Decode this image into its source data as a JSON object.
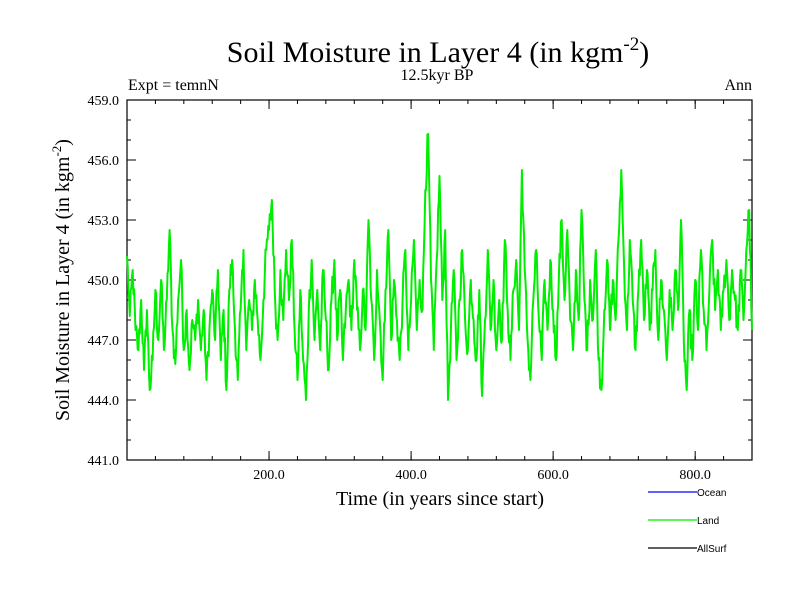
{
  "chart_data": {
    "type": "line",
    "title": "Soil Moisture in Layer 4 (in kgm",
    "title_sup": "-2",
    "title_close": ")",
    "subtitle_left": "Expt = temnN",
    "subtitle_center": "12.5kyr BP",
    "subtitle_right": "Ann",
    "xlabel": "Time (in years since start)",
    "ylabel": "Soil Moisture in Layer 4 (in kgm",
    "ylabel_sup": "-2",
    "ylabel_close": ")",
    "xlim": [
      0,
      880
    ],
    "ylim": [
      441.0,
      459.0
    ],
    "x_ticks": [
      200,
      400,
      600,
      800
    ],
    "x_tick_labels": [
      "200.0",
      "400.0",
      "600.0",
      "800.0"
    ],
    "y_ticks": [
      441,
      444,
      447,
      450,
      453,
      456,
      459
    ],
    "y_tick_labels": [
      "441.0",
      "444.0",
      "447.0",
      "450.0",
      "453.0",
      "456.0",
      "459.0"
    ],
    "x_minor_step": 40,
    "y_minor_step": 1,
    "anchors": [
      [
        0,
        451.2
      ],
      [
        4,
        448.2
      ],
      [
        8,
        450.5
      ],
      [
        12,
        447.5
      ],
      [
        16,
        446.5
      ],
      [
        20,
        449.0
      ],
      [
        24,
        445.5
      ],
      [
        28,
        448.5
      ],
      [
        32,
        444.5
      ],
      [
        36,
        446.0
      ],
      [
        40,
        449.5
      ],
      [
        44,
        447.0
      ],
      [
        48,
        450.0
      ],
      [
        52,
        446.5
      ],
      [
        56,
        449.0
      ],
      [
        60,
        452.5
      ],
      [
        64,
        447.5
      ],
      [
        68,
        445.8
      ],
      [
        72,
        449.0
      ],
      [
        76,
        451.0
      ],
      [
        80,
        446.5
      ],
      [
        84,
        448.5
      ],
      [
        88,
        445.5
      ],
      [
        92,
        448.0
      ],
      [
        96,
        447.0
      ],
      [
        100,
        449.0
      ],
      [
        104,
        446.5
      ],
      [
        108,
        448.5
      ],
      [
        112,
        445.0
      ],
      [
        116,
        447.5
      ],
      [
        120,
        449.5
      ],
      [
        124,
        447.0
      ],
      [
        128,
        450.5
      ],
      [
        132,
        446.0
      ],
      [
        136,
        448.5
      ],
      [
        140,
        444.5
      ],
      [
        144,
        449.5
      ],
      [
        148,
        451.0
      ],
      [
        152,
        447.5
      ],
      [
        156,
        445.0
      ],
      [
        160,
        448.5
      ],
      [
        164,
        451.5
      ],
      [
        168,
        446.5
      ],
      [
        172,
        449.0
      ],
      [
        176,
        447.5
      ],
      [
        180,
        450.0
      ],
      [
        184,
        448.0
      ],
      [
        188,
        446.0
      ],
      [
        192,
        449.0
      ],
      [
        196,
        451.5
      ],
      [
        200,
        452.5
      ],
      [
        204,
        454.0
      ],
      [
        208,
        449.5
      ],
      [
        212,
        447.0
      ],
      [
        216,
        450.5
      ],
      [
        220,
        448.0
      ],
      [
        224,
        451.5
      ],
      [
        228,
        449.0
      ],
      [
        232,
        452.0
      ],
      [
        236,
        447.5
      ],
      [
        240,
        445.0
      ],
      [
        244,
        449.5
      ],
      [
        248,
        446.0
      ],
      [
        252,
        444.0
      ],
      [
        256,
        448.5
      ],
      [
        260,
        451.0
      ],
      [
        264,
        447.0
      ],
      [
        268,
        449.5
      ],
      [
        272,
        446.5
      ],
      [
        276,
        450.5
      ],
      [
        280,
        448.0
      ],
      [
        284,
        445.5
      ],
      [
        288,
        449.0
      ],
      [
        292,
        451.0
      ],
      [
        296,
        447.0
      ],
      [
        300,
        449.5
      ],
      [
        304,
        446.0
      ],
      [
        308,
        448.5
      ],
      [
        312,
        450.0
      ],
      [
        316,
        447.5
      ],
      [
        320,
        451.0
      ],
      [
        324,
        448.5
      ],
      [
        328,
        446.5
      ],
      [
        332,
        449.5
      ],
      [
        336,
        447.5
      ],
      [
        340,
        453.0
      ],
      [
        344,
        449.0
      ],
      [
        348,
        446.0
      ],
      [
        352,
        450.5
      ],
      [
        356,
        448.0
      ],
      [
        360,
        445.0
      ],
      [
        364,
        449.5
      ],
      [
        368,
        452.5
      ],
      [
        372,
        447.0
      ],
      [
        376,
        450.0
      ],
      [
        380,
        448.0
      ],
      [
        384,
        446.0
      ],
      [
        388,
        449.0
      ],
      [
        392,
        451.5
      ],
      [
        396,
        446.5
      ],
      [
        400,
        449.0
      ],
      [
        404,
        452.0
      ],
      [
        408,
        447.5
      ],
      [
        412,
        450.0
      ],
      [
        416,
        448.5
      ],
      [
        420,
        454.5
      ],
      [
        424,
        457.3
      ],
      [
        428,
        450.0
      ],
      [
        432,
        446.5
      ],
      [
        436,
        451.0
      ],
      [
        440,
        455.2
      ],
      [
        444,
        449.0
      ],
      [
        448,
        452.5
      ],
      [
        452,
        444.0
      ],
      [
        456,
        447.5
      ],
      [
        460,
        450.5
      ],
      [
        464,
        446.0
      ],
      [
        468,
        449.0
      ],
      [
        472,
        451.5
      ],
      [
        476,
        448.0
      ],
      [
        480,
        446.5
      ],
      [
        484,
        450.0
      ],
      [
        488,
        448.0
      ],
      [
        492,
        446.0
      ],
      [
        496,
        449.5
      ],
      [
        500,
        444.2
      ],
      [
        504,
        448.0
      ],
      [
        508,
        451.5
      ],
      [
        512,
        447.5
      ],
      [
        516,
        450.0
      ],
      [
        520,
        446.5
      ],
      [
        524,
        449.0
      ],
      [
        528,
        447.0
      ],
      [
        532,
        452.0
      ],
      [
        536,
        448.5
      ],
      [
        540,
        446.0
      ],
      [
        544,
        449.5
      ],
      [
        548,
        451.0
      ],
      [
        552,
        447.5
      ],
      [
        556,
        455.5
      ],
      [
        560,
        450.5
      ],
      [
        564,
        447.0
      ],
      [
        568,
        445.0
      ],
      [
        572,
        449.0
      ],
      [
        576,
        451.5
      ],
      [
        580,
        448.0
      ],
      [
        584,
        446.0
      ],
      [
        588,
        450.0
      ],
      [
        592,
        447.5
      ],
      [
        596,
        451.0
      ],
      [
        600,
        448.5
      ],
      [
        604,
        446.0
      ],
      [
        608,
        450.0
      ],
      [
        612,
        453.0
      ],
      [
        616,
        449.0
      ],
      [
        620,
        452.5
      ],
      [
        624,
        448.0
      ],
      [
        628,
        446.5
      ],
      [
        632,
        450.5
      ],
      [
        636,
        448.0
      ],
      [
        640,
        453.5
      ],
      [
        644,
        449.0
      ],
      [
        648,
        446.5
      ],
      [
        652,
        450.0
      ],
      [
        656,
        448.0
      ],
      [
        660,
        451.5
      ],
      [
        664,
        446.0
      ],
      [
        668,
        444.5
      ],
      [
        672,
        448.5
      ],
      [
        676,
        451.0
      ],
      [
        680,
        447.5
      ],
      [
        684,
        450.0
      ],
      [
        688,
        448.0
      ],
      [
        692,
        452.0
      ],
      [
        696,
        455.5
      ],
      [
        700,
        450.5
      ],
      [
        704,
        447.5
      ],
      [
        708,
        452.0
      ],
      [
        712,
        449.0
      ],
      [
        716,
        446.5
      ],
      [
        720,
        449.5
      ],
      [
        724,
        452.0
      ],
      [
        728,
        448.0
      ],
      [
        732,
        450.5
      ],
      [
        736,
        447.5
      ],
      [
        740,
        449.5
      ],
      [
        744,
        451.5
      ],
      [
        748,
        447.0
      ],
      [
        752,
        450.0
      ],
      [
        756,
        448.5
      ],
      [
        760,
        446.0
      ],
      [
        764,
        449.5
      ],
      [
        768,
        447.5
      ],
      [
        772,
        450.5
      ],
      [
        776,
        448.5
      ],
      [
        780,
        453.0
      ],
      [
        784,
        447.0
      ],
      [
        788,
        444.5
      ],
      [
        792,
        448.5
      ],
      [
        796,
        446.0
      ],
      [
        800,
        450.0
      ],
      [
        804,
        447.5
      ],
      [
        808,
        451.5
      ],
      [
        812,
        448.5
      ],
      [
        816,
        446.5
      ],
      [
        820,
        449.5
      ],
      [
        824,
        452.0
      ],
      [
        828,
        448.5
      ],
      [
        832,
        450.5
      ],
      [
        836,
        447.5
      ],
      [
        840,
        449.5
      ],
      [
        844,
        451.0
      ],
      [
        848,
        448.0
      ],
      [
        852,
        450.5
      ],
      [
        856,
        449.0
      ],
      [
        860,
        447.5
      ],
      [
        864,
        450.5
      ],
      [
        868,
        448.0
      ],
      [
        872,
        451.5
      ],
      [
        876,
        453.5
      ],
      [
        880,
        447.5
      ]
    ],
    "series": [
      {
        "name": "Ocean",
        "color": "#0000ff",
        "values": []
      },
      {
        "name": "Land",
        "color": "#00ee00",
        "values": "anchors"
      },
      {
        "name": "AllSurf",
        "color": "#000000",
        "values": []
      }
    ]
  }
}
